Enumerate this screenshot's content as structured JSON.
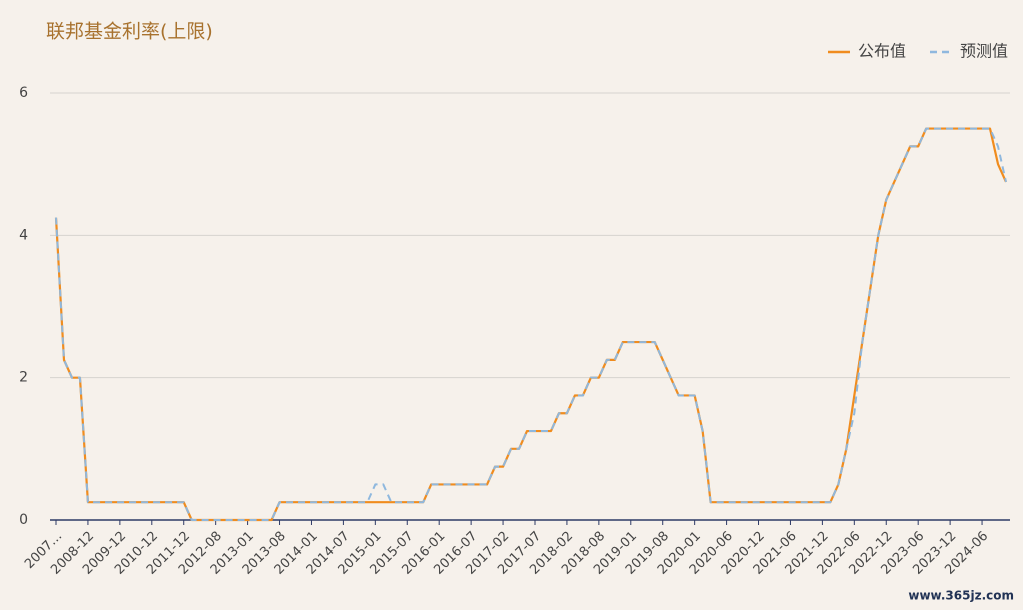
{
  "chart_data": {
    "type": "line",
    "title": "联邦基金利率(上限)",
    "watermark": "www.365jz.com",
    "categories": [
      "2007…",
      null,
      null,
      null,
      "2008-12",
      null,
      null,
      null,
      "2009-12",
      null,
      null,
      null,
      "2010-12",
      null,
      null,
      null,
      "2011-12",
      null,
      null,
      null,
      "2012-08",
      null,
      null,
      null,
      "2013-01",
      null,
      null,
      null,
      "2013-08",
      null,
      null,
      null,
      "2014-01",
      null,
      null,
      null,
      "2014-07",
      null,
      null,
      null,
      "2015-01",
      null,
      null,
      null,
      "2015-07",
      null,
      null,
      null,
      "2016-01",
      null,
      null,
      null,
      "2016-07",
      null,
      null,
      null,
      "2017-02",
      null,
      null,
      null,
      "2017-07",
      null,
      null,
      null,
      "2018-02",
      null,
      null,
      null,
      "2018-08",
      null,
      null,
      null,
      "2019-01",
      null,
      null,
      null,
      "2019-08",
      null,
      null,
      null,
      "2020-01",
      null,
      null,
      null,
      "2020-06",
      null,
      null,
      null,
      "2020-12",
      null,
      null,
      null,
      "2021-06",
      null,
      null,
      null,
      "2021-12",
      null,
      null,
      null,
      "2022-06",
      null,
      null,
      null,
      "2022-12",
      null,
      null,
      null,
      "2023-06",
      null,
      null,
      null,
      "2023-12",
      null,
      null,
      null,
      "2024-06",
      null,
      null,
      null
    ],
    "series": [
      {
        "name": "公布值",
        "color": "#f08c1e",
        "dashed": false,
        "values": [
          4.25,
          2.25,
          2,
          2,
          0.25,
          0.25,
          0.25,
          0.25,
          0.25,
          0.25,
          0.25,
          0.25,
          0.25,
          0.25,
          0.25,
          0.25,
          0.25,
          0,
          0,
          0,
          0,
          0,
          0,
          0,
          0,
          0,
          0,
          0,
          0.25,
          0.25,
          0.25,
          0.25,
          0.25,
          0.25,
          0.25,
          0.25,
          0.25,
          0.25,
          0.25,
          0.25,
          0.25,
          0.25,
          0.25,
          0.25,
          0.25,
          0.25,
          0.25,
          0.5,
          0.5,
          0.5,
          0.5,
          0.5,
          0.5,
          0.5,
          0.5,
          0.75,
          0.75,
          1,
          1,
          1.25,
          1.25,
          1.25,
          1.25,
          1.5,
          1.5,
          1.75,
          1.75,
          2,
          2,
          2.25,
          2.25,
          2.5,
          2.5,
          2.5,
          2.5,
          2.5,
          2.25,
          2,
          1.75,
          1.75,
          1.75,
          1.25,
          0.25,
          0.25,
          0.25,
          0.25,
          0.25,
          0.25,
          0.25,
          0.25,
          0.25,
          0.25,
          0.25,
          0.25,
          0.25,
          0.25,
          0.25,
          0.25,
          0.5,
          1,
          1.75,
          2.5,
          3.25,
          4,
          4.5,
          4.75,
          5,
          5.25,
          5.25,
          5.5,
          5.5,
          5.5,
          5.5,
          5.5,
          5.5,
          5.5,
          5.5,
          5.5,
          5,
          4.75
        ]
      },
      {
        "name": "预测值",
        "color": "#8fb8de",
        "dashed": true,
        "values": [
          4.25,
          2.25,
          2,
          2,
          0.25,
          0.25,
          0.25,
          0.25,
          0.25,
          0.25,
          0.25,
          0.25,
          0.25,
          0.25,
          0.25,
          0.25,
          0.25,
          0,
          0,
          0,
          0,
          0,
          0,
          0,
          0,
          0,
          0,
          0,
          0.25,
          0.25,
          0.25,
          0.25,
          0.25,
          0.25,
          0.25,
          0.25,
          0.25,
          0.25,
          0.25,
          0.25,
          0.5,
          0.5,
          0.25,
          0.25,
          0.25,
          0.25,
          0.25,
          0.5,
          0.5,
          0.5,
          0.5,
          0.5,
          0.5,
          0.5,
          0.5,
          0.75,
          0.75,
          1,
          1,
          1.25,
          1.25,
          1.25,
          1.25,
          1.5,
          1.5,
          1.75,
          1.75,
          2,
          2,
          2.25,
          2.25,
          2.5,
          2.5,
          2.5,
          2.5,
          2.5,
          2.25,
          2,
          1.75,
          1.75,
          1.75,
          1.25,
          0.25,
          0.25,
          0.25,
          0.25,
          0.25,
          0.25,
          0.25,
          0.25,
          0.25,
          0.25,
          0.25,
          0.25,
          0.25,
          0.25,
          0.25,
          0.25,
          0.5,
          1,
          1.5,
          2.5,
          3.25,
          4,
          4.5,
          4.75,
          5,
          5.25,
          5.25,
          5.5,
          5.5,
          5.5,
          5.5,
          5.5,
          5.5,
          5.5,
          5.5,
          5.5,
          5.25,
          4.75
        ]
      }
    ],
    "ylim": [
      0,
      6
    ],
    "yticks": [
      0,
      2,
      4,
      6
    ],
    "grid": true,
    "legend": "top-right"
  }
}
